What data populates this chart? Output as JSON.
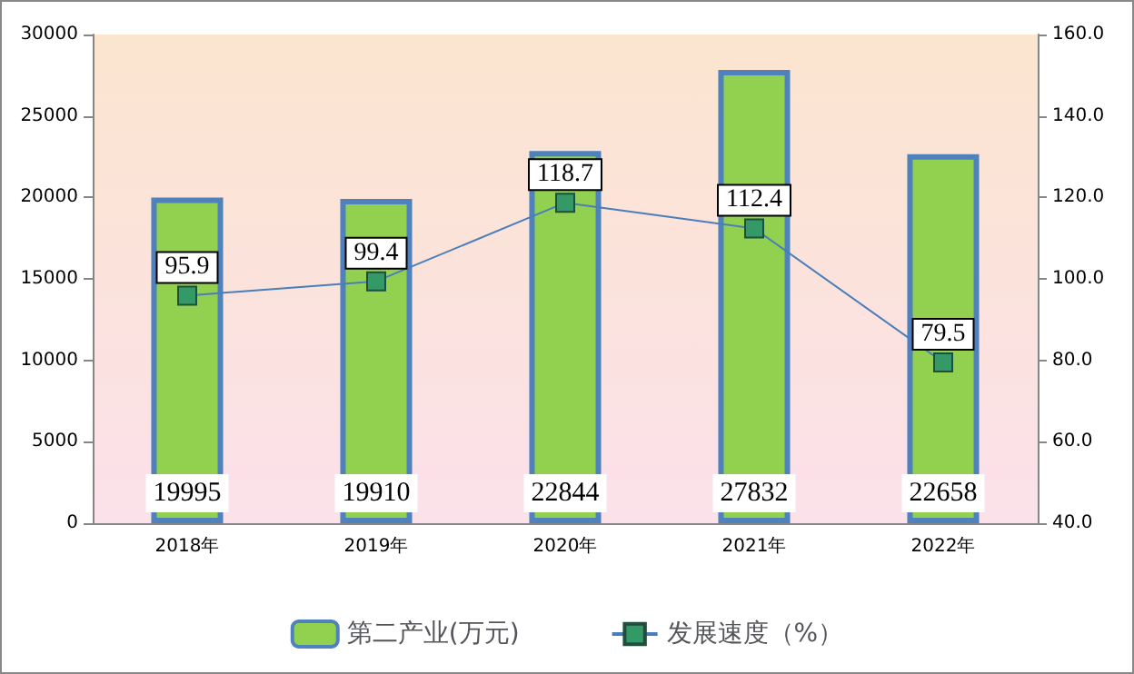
{
  "chart_data": {
    "type": "bar",
    "categories": [
      "2018年",
      "2019年",
      "2020年",
      "2021年",
      "2022年"
    ],
    "series": [
      {
        "name": "第二产业(万元)",
        "color": "#92d050",
        "values": [
          19995,
          19910,
          22844,
          27832,
          22658
        ]
      },
      {
        "name": "发展速度（%）",
        "type": "line",
        "axis": "y2",
        "color": "#4a7ebb",
        "marker": "square",
        "values": [
          95.9,
          99.4,
          118.7,
          112.4,
          79.5
        ]
      }
    ],
    "ylim": [
      0,
      30000
    ],
    "yticks": [
      0,
      5000,
      10000,
      15000,
      20000,
      25000,
      30000
    ],
    "y2lim": [
      40,
      160
    ],
    "y2ticks": [
      {
        "value": 40,
        "label": "40.0"
      },
      {
        "value": 60,
        "label": "60.0"
      },
      {
        "value": 80,
        "label": "80.0"
      },
      {
        "value": 100,
        "label": "100.0"
      },
      {
        "value": 120,
        "label": "120.0"
      },
      {
        "value": 140,
        "label": "140.0"
      },
      {
        "value": 160,
        "label": "160.0"
      }
    ],
    "data_labels": true,
    "legend": "bottom",
    "grid": false
  }
}
